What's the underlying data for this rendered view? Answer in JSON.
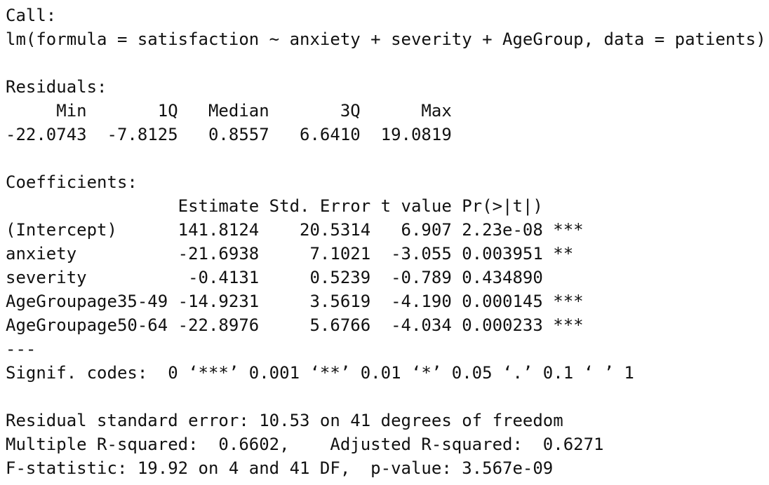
{
  "console": {
    "lines": [
      "Call:",
      "lm(formula = satisfaction ~ anxiety + severity + AgeGroup, data = patients)",
      "",
      "Residuals:",
      "     Min       1Q   Median       3Q      Max ",
      "-22.0743  -7.8125   0.8557   6.6410  19.0819 ",
      "",
      "Coefficients:",
      "                 Estimate Std. Error t value Pr(>|t|)    ",
      "(Intercept)      141.8124    20.5314   6.907 2.23e-08 ***",
      "anxiety          -21.6938     7.1021  -3.055 0.003951 ** ",
      "severity          -0.4131     0.5239  -0.789 0.434890    ",
      "AgeGroupage35-49 -14.9231     3.5619  -4.190 0.000145 ***",
      "AgeGroupage50-64 -22.8976     5.6766  -4.034 0.000233 ***",
      "---",
      "Signif. codes:  0 ‘***’ 0.001 ‘**’ 0.01 ‘*’ 0.05 ‘.’ 0.1 ‘ ’ 1",
      "",
      "Residual standard error: 10.53 on 41 degrees of freedom",
      "Multiple R-squared:  0.6602,\tAdjusted R-squared:  0.6271 ",
      "F-statistic: 19.92 on 4 and 41 DF,  p-value: 3.567e-09"
    ]
  }
}
